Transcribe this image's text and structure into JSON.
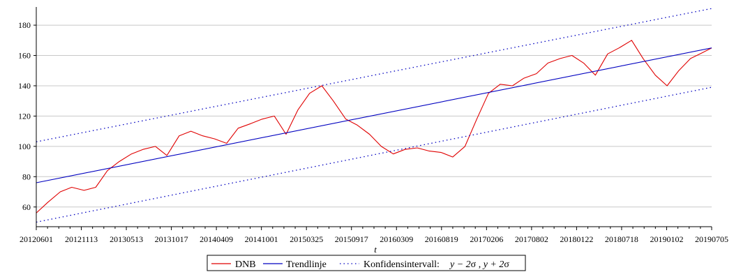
{
  "chart_data": {
    "type": "line",
    "title": "",
    "xlabel": "t",
    "ylabel": "",
    "ylim": [
      47,
      192
    ],
    "grid": "horizontal",
    "legend_position": "bottom-center",
    "x_tick_labels": [
      "20120601",
      "20121113",
      "20130513",
      "20131017",
      "20140409",
      "20141001",
      "20150325",
      "20150917",
      "20160309",
      "20160819",
      "20170206",
      "20170802",
      "20180122",
      "20180718",
      "20190102",
      "20190705"
    ],
    "y_ticks": [
      60,
      80,
      100,
      120,
      140,
      160,
      180
    ],
    "series": [
      {
        "name": "DNB",
        "style": "solid",
        "color": "#e00000",
        "x": [
          "2012-06-01",
          "2012-07-15",
          "2012-09-01",
          "2012-10-15",
          "2012-12-01",
          "2013-01-15",
          "2013-03-01",
          "2013-04-15",
          "2013-06-01",
          "2013-07-15",
          "2013-09-01",
          "2013-10-15",
          "2013-12-01",
          "2014-01-15",
          "2014-03-01",
          "2014-04-15",
          "2014-06-01",
          "2014-07-15",
          "2014-09-01",
          "2014-10-15",
          "2014-12-01",
          "2015-01-15",
          "2015-03-01",
          "2015-04-15",
          "2015-06-01",
          "2015-07-15",
          "2015-09-01",
          "2015-10-15",
          "2015-12-01",
          "2016-01-15",
          "2016-03-01",
          "2016-04-15",
          "2016-06-01",
          "2016-07-15",
          "2016-09-01",
          "2016-10-15",
          "2016-12-01",
          "2017-01-15",
          "2017-03-01",
          "2017-04-15",
          "2017-06-01",
          "2017-07-15",
          "2017-09-01",
          "2017-10-15",
          "2017-12-01",
          "2018-01-15",
          "2018-03-01",
          "2018-04-15",
          "2018-06-01",
          "2018-07-15",
          "2018-09-01",
          "2018-10-15",
          "2018-12-01",
          "2019-01-15",
          "2019-03-01",
          "2019-04-15",
          "2019-06-01",
          "2019-07-05"
        ],
        "values": [
          56,
          63,
          70,
          73,
          71,
          73,
          84,
          90,
          95,
          98,
          100,
          94,
          107,
          110,
          107,
          105,
          102,
          112,
          115,
          118,
          120,
          108,
          124,
          135,
          140,
          130,
          118,
          114,
          108,
          100,
          95,
          98,
          99,
          97,
          96,
          93,
          100,
          118,
          135,
          141,
          140,
          145,
          148,
          155,
          158,
          160,
          155,
          147,
          161,
          165,
          170,
          158,
          147,
          140,
          150,
          158,
          162,
          165
        ]
      },
      {
        "name": "Trendlinje",
        "style": "solid",
        "color": "#0000c0",
        "x": [
          "2012-06-01",
          "2019-07-05"
        ],
        "values": [
          76,
          165
        ]
      },
      {
        "name": "Konfidensintervall:",
        "style": "dotted",
        "color": "#0000c0",
        "x": [
          "2012-06-01",
          "2019-07-05"
        ],
        "values": [
          103,
          191
        ]
      },
      {
        "name": "Konfidensintervall:",
        "style": "dotted",
        "color": "#0000c0",
        "x": [
          "2012-06-01",
          "2019-07-05"
        ],
        "values": [
          50,
          139
        ]
      }
    ],
    "legend": {
      "entries": [
        "DNB",
        "Trendlinje",
        "Konfidensintervall:"
      ],
      "formula_parts": [
        "y − 2",
        "σ",
        " , ",
        "y + 2",
        "σ"
      ]
    }
  }
}
